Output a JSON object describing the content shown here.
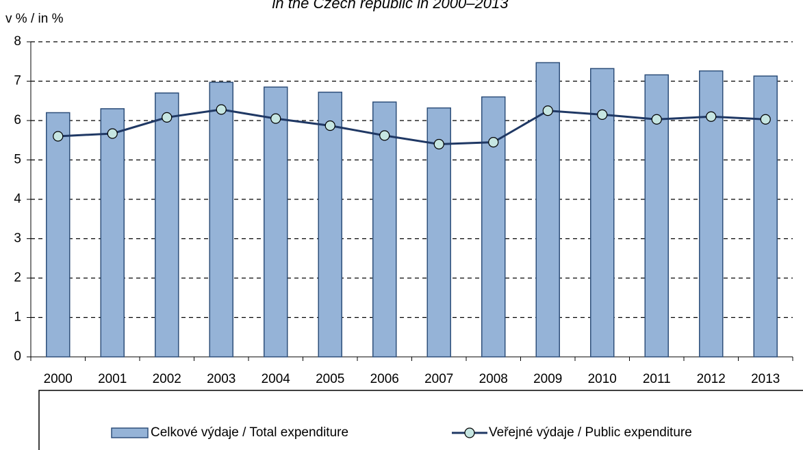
{
  "chart_data": {
    "type": "bar_line",
    "title": "in the Czech republic in 2000–2013",
    "y_label": "v %  /  in %",
    "categories": [
      "2000",
      "2001",
      "2002",
      "2003",
      "2004",
      "2005",
      "2006",
      "2007",
      "2008",
      "2009",
      "2010",
      "2011",
      "2012",
      "2013"
    ],
    "series": [
      {
        "name": "Celkové výdaje / Total expenditure",
        "type": "bar",
        "color": "#95b3d7",
        "values": [
          6.2,
          6.3,
          6.7,
          6.97,
          6.85,
          6.72,
          6.47,
          6.32,
          6.6,
          7.47,
          7.32,
          7.16,
          7.26,
          7.13
        ]
      },
      {
        "name": "Veřejné výdaje / Public expenditure",
        "type": "line",
        "color": "#1f3864",
        "marker_color": "#c6e6e2",
        "values": [
          5.6,
          5.67,
          6.08,
          6.28,
          6.05,
          5.87,
          5.62,
          5.4,
          5.45,
          6.25,
          6.15,
          6.03,
          6.1,
          6.03
        ]
      }
    ],
    "ylim": [
      0,
      8
    ],
    "yticks": [
      0,
      1,
      2,
      3,
      4,
      5,
      6,
      7,
      8
    ],
    "grid": true,
    "legend": "bottom"
  }
}
